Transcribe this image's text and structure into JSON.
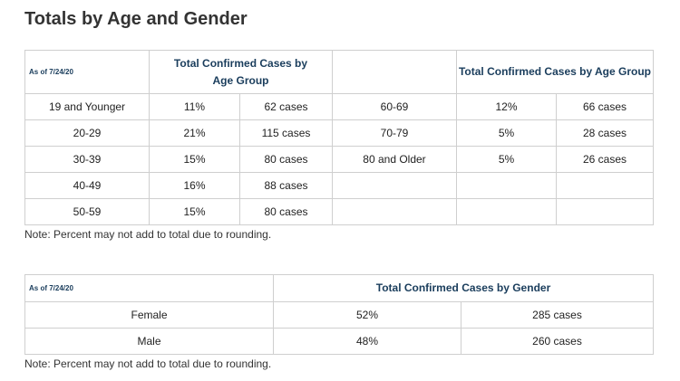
{
  "title": "Totals by Age and Gender",
  "age_table": {
    "as_of": "As of 7/24/20",
    "header_left": "Total Confirmed Cases by Age Group",
    "header_right": "Total Confirmed Cases by Age Group",
    "rows": [
      {
        "left": {
          "group": "19 and Younger",
          "pct": "11%",
          "cases": "62 cases"
        },
        "right": {
          "group": "60-69",
          "pct": "12%",
          "cases": "66 cases"
        }
      },
      {
        "left": {
          "group": "20-29",
          "pct": "21%",
          "cases": "115 cases"
        },
        "right": {
          "group": "70-79",
          "pct": "5%",
          "cases": "28 cases"
        }
      },
      {
        "left": {
          "group": "30-39",
          "pct": "15%",
          "cases": "80 cases"
        },
        "right": {
          "group": "80 and Older",
          "pct": "5%",
          "cases": "26 cases"
        }
      },
      {
        "left": {
          "group": "40-49",
          "pct": "16%",
          "cases": "88 cases"
        }
      },
      {
        "left": {
          "group": "50-59",
          "pct": "15%",
          "cases": "80 cases"
        }
      }
    ]
  },
  "note1": "Note: Percent may not add to total due to rounding.",
  "gender_table": {
    "as_of": "As of 7/24/20",
    "header": "Total Confirmed Cases by Gender",
    "rows": [
      {
        "gender": "Female",
        "pct": "52%",
        "cases": "285 cases"
      },
      {
        "gender": "Male",
        "pct": "48%",
        "cases": "260 cases"
      }
    ]
  },
  "note2": "Note: Percent may not add to total due to rounding."
}
